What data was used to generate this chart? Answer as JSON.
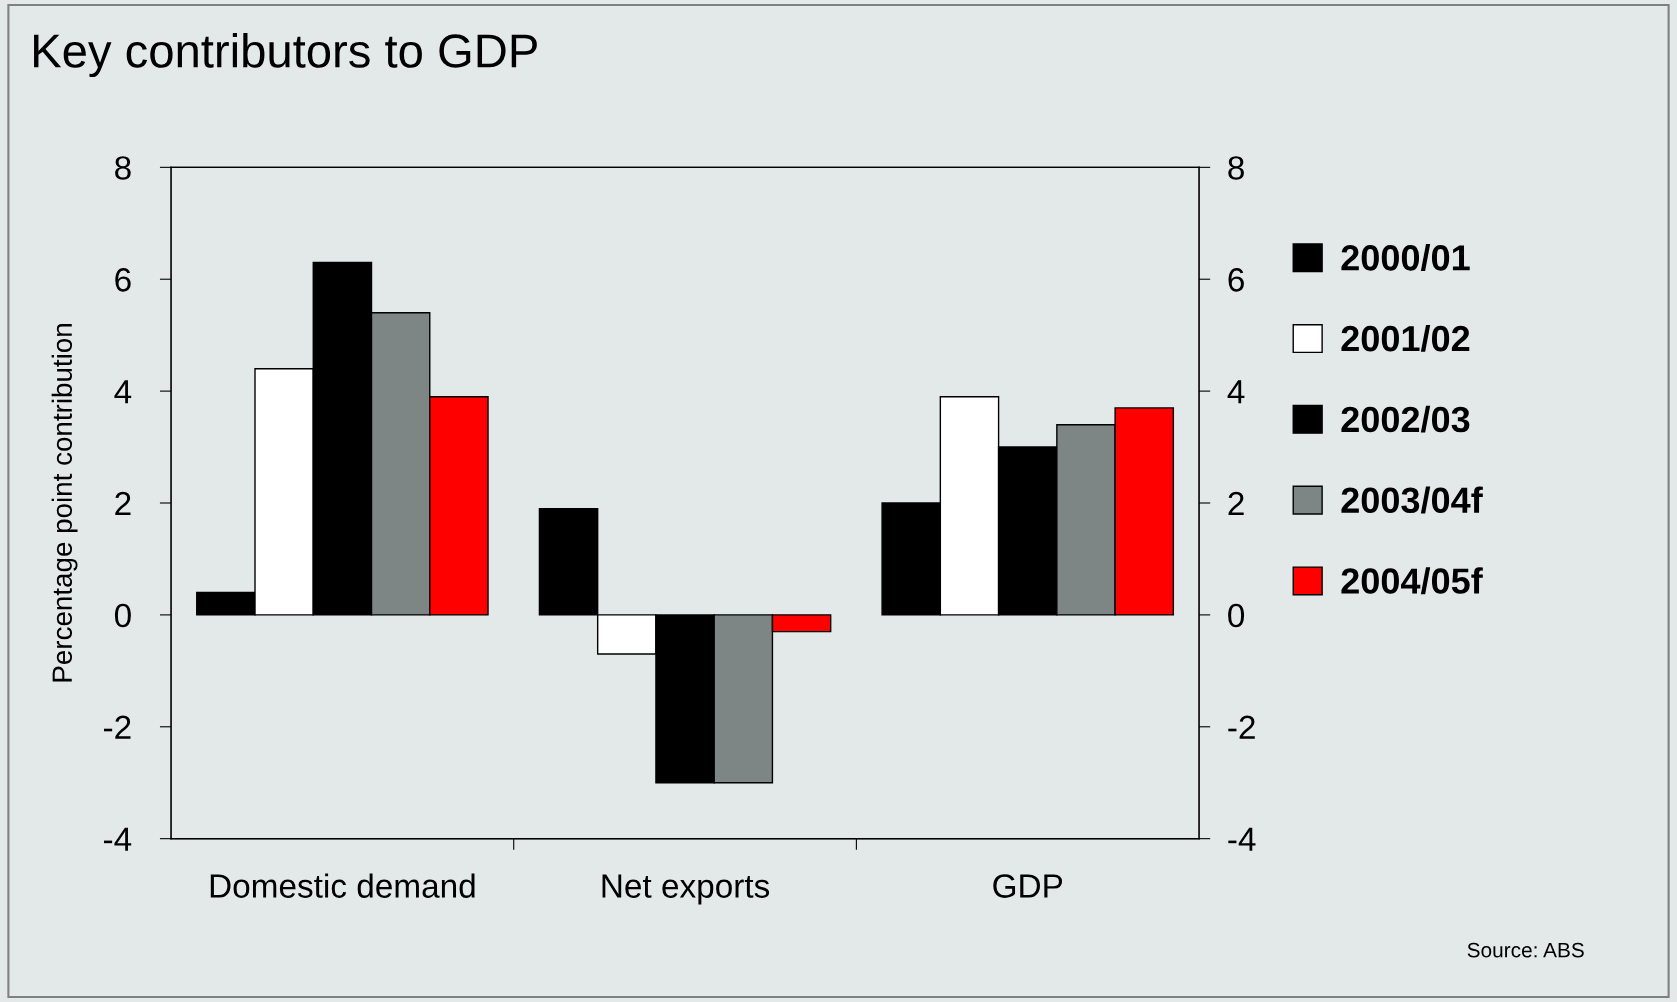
{
  "chart_data": {
    "type": "bar",
    "title": "Key contributors to GDP",
    "ylabel": "Percentage point contribution",
    "categories": [
      "Domestic demand",
      "Net exports",
      "GDP"
    ],
    "series": [
      {
        "name": "2000/01",
        "color": "#000000",
        "values": [
          0.4,
          1.9,
          2.0
        ]
      },
      {
        "name": "2001/02",
        "color": "#ffffff",
        "values": [
          4.4,
          -0.7,
          3.9
        ]
      },
      {
        "name": "2002/03",
        "color": "#000000",
        "values": [
          6.3,
          -3.0,
          3.0
        ]
      },
      {
        "name": "2003/04f",
        "color": "#7d8585",
        "values": [
          5.4,
          -3.0,
          3.4
        ]
      },
      {
        "name": "2004/05f",
        "color": "#ff0000",
        "values": [
          3.9,
          -0.3,
          3.7
        ]
      }
    ],
    "ylim": [
      -4,
      8
    ],
    "yticks": [
      -4,
      -2,
      0,
      2,
      4,
      6,
      8
    ],
    "y2lim": [
      -4,
      8
    ],
    "y2ticks": [
      -4,
      -2,
      0,
      2,
      4,
      6,
      8
    ],
    "grid": false,
    "legend": "right",
    "annotations": [
      "Source: ABS"
    ]
  }
}
